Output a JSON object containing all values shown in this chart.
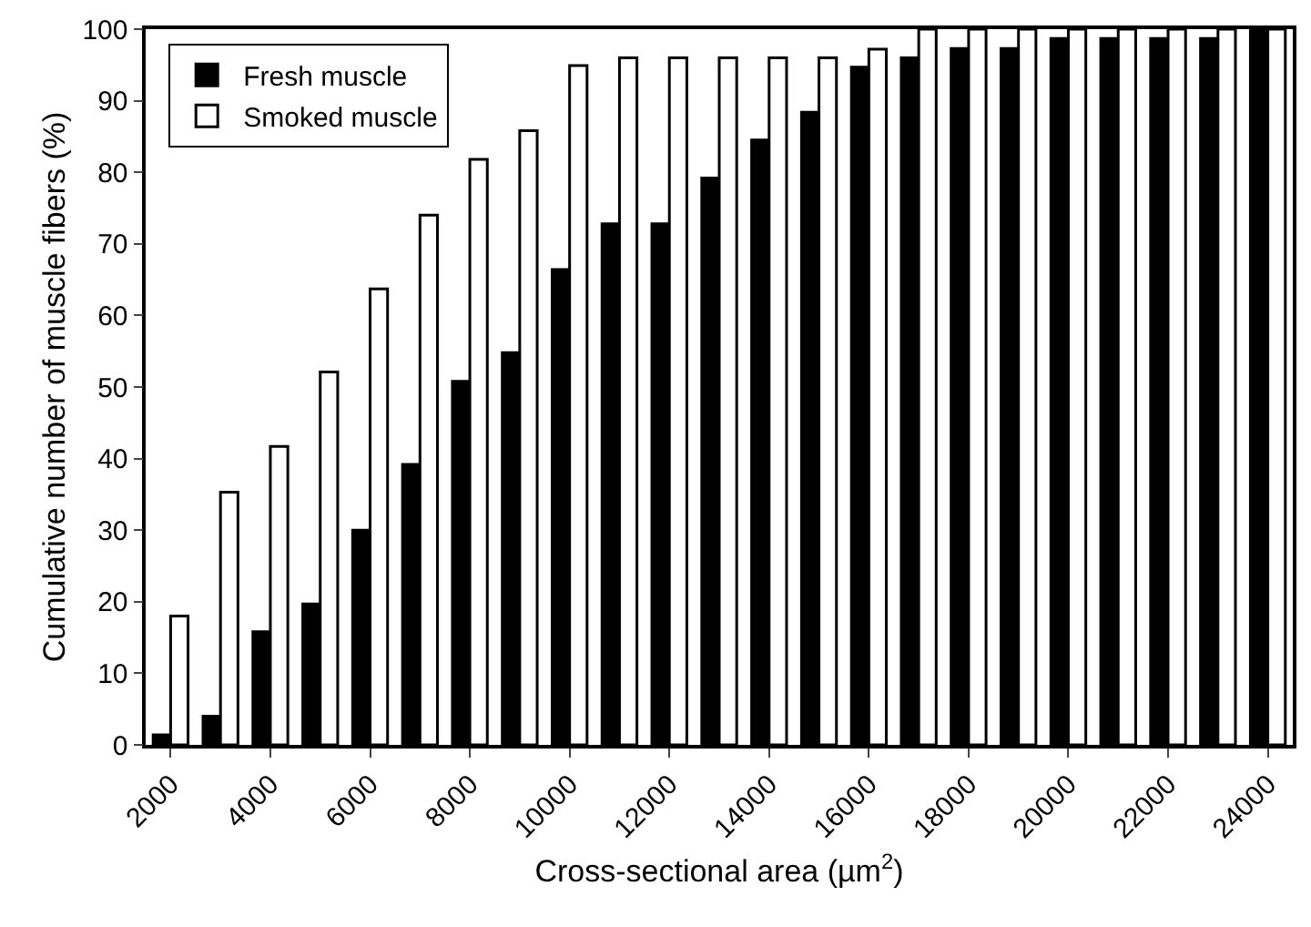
{
  "chart_data": {
    "type": "bar",
    "xlabel": "Cross-sectional area (µm$^{2}$)",
    "ylabel": "Cumulative number of muscle fibers (%)",
    "categories": [
      "2000",
      null,
      "4000",
      null,
      "6000",
      null,
      "8000",
      null,
      "10000",
      null,
      "12000",
      null,
      "14000",
      null,
      "16000",
      null,
      "18000",
      null,
      "20000",
      null,
      "22000",
      null,
      "24000"
    ],
    "series": [
      {
        "name": "Fresh muscle",
        "color": "#000000",
        "values": [
          1.4,
          4,
          15.8,
          19.7,
          30,
          39.2,
          50.8,
          54.8,
          66.4,
          72.8,
          72.8,
          79.2,
          84.5,
          88.4,
          94.7,
          96,
          97.3,
          97.3,
          98.7,
          98.7,
          98.7,
          98.7,
          100
        ]
      },
      {
        "name": "Smoked muscle",
        "color": "#ffffff",
        "values": [
          18,
          35.3,
          41.7,
          52.1,
          63.7,
          74,
          81.8,
          85.8,
          94.9,
          96,
          96,
          96,
          96,
          96,
          97.2,
          100,
          100,
          100,
          100,
          100,
          100,
          100,
          100
        ]
      }
    ],
    "ylim": [
      0,
      100
    ],
    "yticks": [
      0,
      10,
      20,
      30,
      40,
      50,
      60,
      70,
      80,
      90,
      100
    ],
    "grid": false,
    "legend": "top left"
  }
}
